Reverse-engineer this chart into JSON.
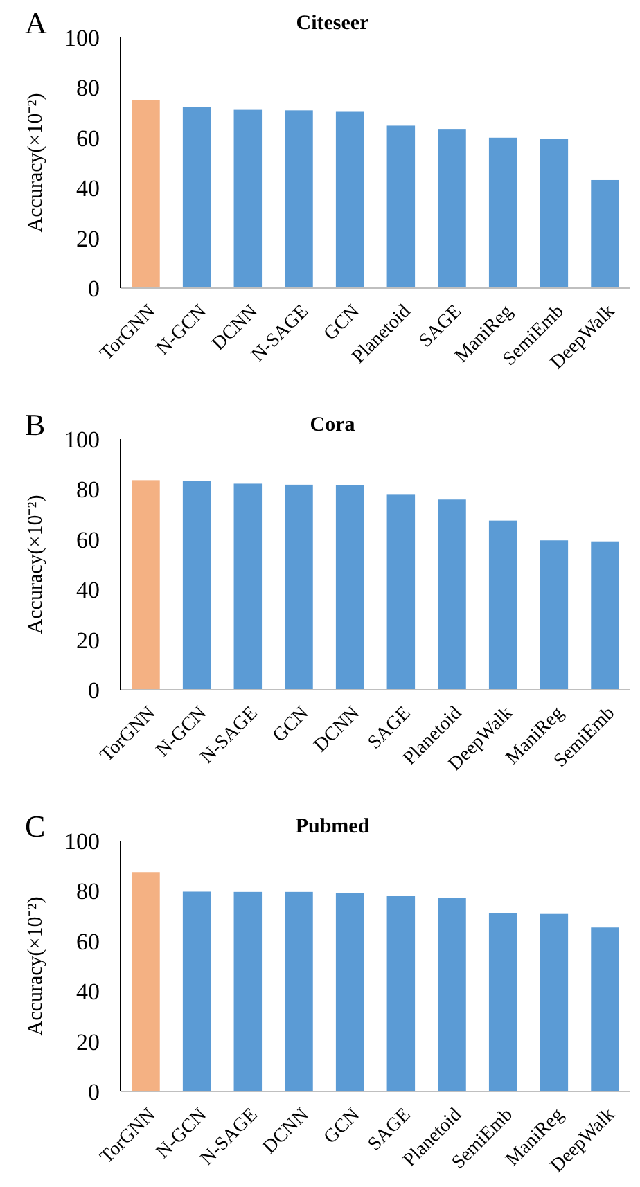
{
  "chart_data": [
    {
      "type": "bar",
      "title": "Citeseer",
      "ylabel": "Accuracy(×10⁻²)",
      "annotations": [
        "A"
      ],
      "categories": [
        "TorGNN",
        "N-GCN",
        "DCNN",
        "N-SAGE",
        "GCN",
        "Planetoid",
        "SAGE",
        "ManiReg",
        "SemiEmb",
        "DeepWalk"
      ],
      "values": [
        75.1,
        72.2,
        71.1,
        70.9,
        70.3,
        64.8,
        63.5,
        60.0,
        59.5,
        43.1
      ],
      "colors": [
        "#f4b183",
        "#5b9bd5",
        "#5b9bd5",
        "#5b9bd5",
        "#5b9bd5",
        "#5b9bd5",
        "#5b9bd5",
        "#5b9bd5",
        "#5b9bd5",
        "#5b9bd5"
      ],
      "ylim": [
        0,
        100
      ],
      "yticks": [
        0,
        20,
        40,
        60,
        80,
        100
      ],
      "grid": false
    },
    {
      "type": "bar",
      "title": "Cora",
      "ylabel": "Accuracy(×10⁻²)",
      "annotations": [
        "B"
      ],
      "categories": [
        "TorGNN",
        "N-GCN",
        "N-SAGE",
        "GCN",
        "DCNN",
        "SAGE",
        "Planetoid",
        "DeepWalk",
        "ManiReg",
        "SemiEmb"
      ],
      "values": [
        83.6,
        83.3,
        82.2,
        81.8,
        81.6,
        77.8,
        75.9,
        67.5,
        59.6,
        59.2
      ],
      "colors": [
        "#f4b183",
        "#5b9bd5",
        "#5b9bd5",
        "#5b9bd5",
        "#5b9bd5",
        "#5b9bd5",
        "#5b9bd5",
        "#5b9bd5",
        "#5b9bd5",
        "#5b9bd5"
      ],
      "ylim": [
        0,
        100
      ],
      "yticks": [
        0,
        20,
        40,
        60,
        80,
        100
      ],
      "grid": false
    },
    {
      "type": "bar",
      "title": "Pubmed",
      "ylabel": "Accuracy(×10⁻²)",
      "annotations": [
        "C"
      ],
      "categories": [
        "TorGNN",
        "N-GCN",
        "N-SAGE",
        "DCNN",
        "GCN",
        "SAGE",
        "Planetoid",
        "SemiEmb",
        "ManiReg",
        "DeepWalk"
      ],
      "values": [
        87.5,
        79.7,
        79.6,
        79.6,
        79.2,
        77.9,
        77.3,
        71.2,
        70.8,
        65.4
      ],
      "colors": [
        "#f4b183",
        "#5b9bd5",
        "#5b9bd5",
        "#5b9bd5",
        "#5b9bd5",
        "#5b9bd5",
        "#5b9bd5",
        "#5b9bd5",
        "#5b9bd5",
        "#5b9bd5"
      ],
      "ylim": [
        0,
        100
      ],
      "yticks": [
        0,
        20,
        40,
        60,
        80,
        100
      ],
      "grid": false
    }
  ]
}
